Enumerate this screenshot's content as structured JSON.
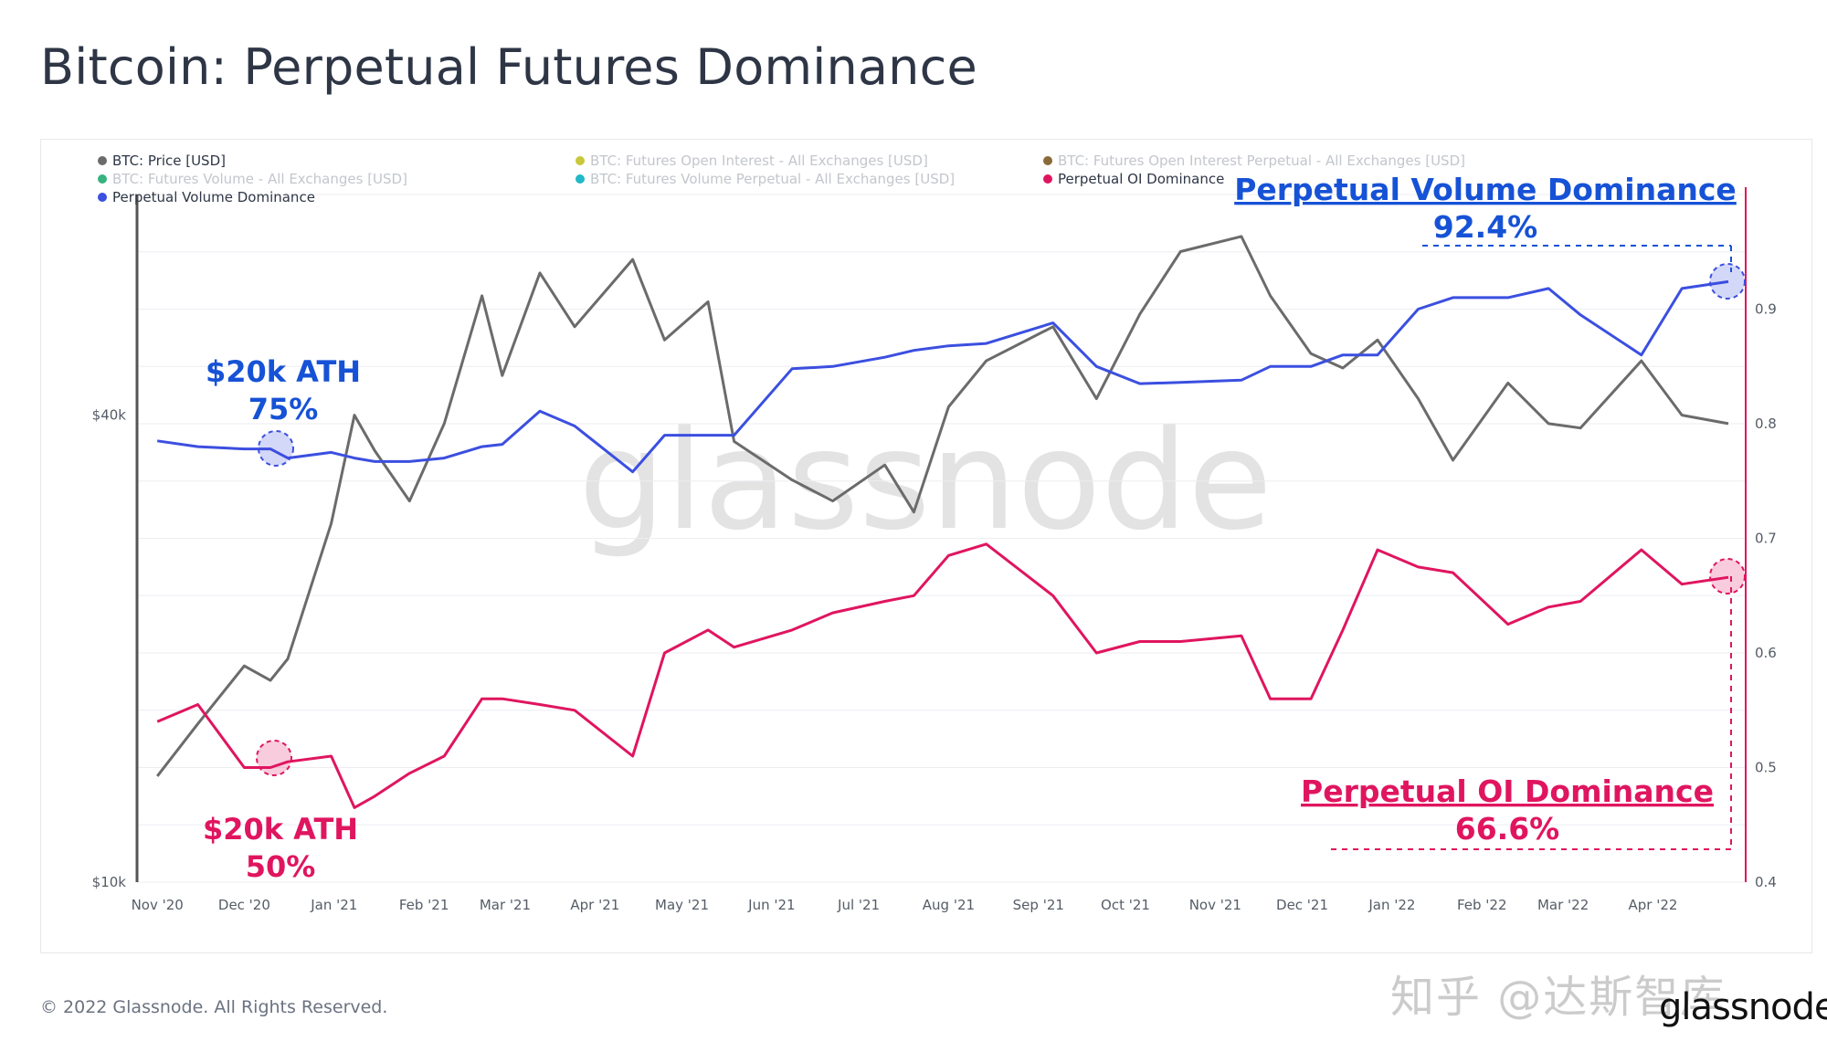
{
  "title": "Bitcoin: Perpetual Futures Dominance",
  "footer": {
    "copyright": "© 2022 Glassnode. All Rights Reserved.",
    "logo": "glassnode",
    "watermark": "知乎 @达斯智库"
  },
  "colors": {
    "price": "#6b6b6b",
    "pvd": "#3b4fe0",
    "poi": "#e0155f",
    "pvd_text": "#1652d6",
    "poi_text": "#e0155f",
    "grid": "#eceef2",
    "axis": "#555c66"
  },
  "legend": [
    {
      "label": "BTC: Price [USD]",
      "color": "#6b6b6b",
      "active": true
    },
    {
      "label": "BTC: Futures Open Interest - All Exchanges [USD]",
      "color": "#c8c83c",
      "active": false
    },
    {
      "label": "BTC: Futures Open Interest Perpetual - All Exchanges [USD]",
      "color": "#8a6a3a",
      "active": false
    },
    {
      "label": "BTC: Futures Volume - All Exchanges [USD]",
      "color": "#36b37e",
      "active": false
    },
    {
      "label": "BTC: Futures Volume Perpetual - All Exchanges [USD]",
      "color": "#22b8c8",
      "active": false
    },
    {
      "label": "Perpetual OI Dominance",
      "color": "#e0155f",
      "active": true
    },
    {
      "label": "Perpetual Volume Dominance",
      "color": "#3b4fe0",
      "active": true
    }
  ],
  "annotations": {
    "pvd_title": "Perpetual Volume Dominance",
    "pvd_value": "92.4%",
    "poi_title": "Perpetual OI Dominance",
    "poi_value": "66.6%",
    "ath_blue_line1": "$20k ATH",
    "ath_blue_line2": "75%",
    "ath_red_line1": "$20k ATH",
    "ath_red_line2": "50%"
  },
  "chart_data": {
    "type": "line",
    "title": "Bitcoin: Perpetual Futures Dominance",
    "watermark": "glassnode",
    "x_ticks": [
      "Nov '20",
      "Dec '20",
      "Jan '21",
      "Feb '21",
      "Mar '21",
      "Apr '21",
      "May '21",
      "Jun '21",
      "Jul '21",
      "Aug '21",
      "Sep '21",
      "Oct '21",
      "Nov '21",
      "Dec '21",
      "Jan '22",
      "Feb '22",
      "Mar '22",
      "Apr '22"
    ],
    "y_left": {
      "scale": "log",
      "ticks": [
        "$10k",
        "$40k"
      ],
      "tick_values": [
        10000,
        40000
      ],
      "range": [
        10000,
        77000
      ]
    },
    "y_right": {
      "ticks": [
        "0.4",
        "0.5",
        "0.6",
        "0.7",
        "0.8",
        "0.9"
      ],
      "range": [
        0.4,
        1.0
      ]
    },
    "x": [
      "2020-11-01",
      "2020-11-15",
      "2020-12-01",
      "2020-12-10",
      "2020-12-16",
      "2020-12-31",
      "2021-01-08",
      "2021-01-15",
      "2021-01-27",
      "2021-02-08",
      "2021-02-21",
      "2021-02-28",
      "2021-03-13",
      "2021-03-25",
      "2021-04-14",
      "2021-04-25",
      "2021-05-10",
      "2021-05-19",
      "2021-06-08",
      "2021-06-22",
      "2021-07-10",
      "2021-07-20",
      "2021-08-01",
      "2021-08-14",
      "2021-09-06",
      "2021-09-21",
      "2021-10-06",
      "2021-10-20",
      "2021-11-10",
      "2021-11-20",
      "2021-12-04",
      "2021-12-15",
      "2021-12-27",
      "2022-01-10",
      "2022-01-22",
      "2022-02-10",
      "2022-02-24",
      "2022-03-07",
      "2022-03-28",
      "2022-04-11",
      "2022-04-27"
    ],
    "series": [
      {
        "name": "BTC: Price [USD]",
        "axis": "left",
        "values": [
          13700,
          16000,
          19000,
          18200,
          19400,
          29000,
          40000,
          36000,
          31000,
          39000,
          57000,
          45000,
          61000,
          52000,
          63500,
          50000,
          56000,
          37000,
          33000,
          31000,
          34500,
          30000,
          41000,
          47000,
          52000,
          42000,
          54000,
          65000,
          68000,
          57000,
          48000,
          46000,
          50000,
          42000,
          35000,
          44000,
          39000,
          38500,
          47000,
          40000,
          39000
        ]
      },
      {
        "name": "Perpetual Volume Dominance",
        "axis": "right",
        "values": [
          0.785,
          0.78,
          0.778,
          0.778,
          0.77,
          0.775,
          0.77,
          0.767,
          0.767,
          0.77,
          0.78,
          0.782,
          0.811,
          0.798,
          0.758,
          0.79,
          0.79,
          0.79,
          0.848,
          0.85,
          0.858,
          0.864,
          0.868,
          0.87,
          0.888,
          0.85,
          0.835,
          0.836,
          0.838,
          0.85,
          0.85,
          0.86,
          0.86,
          0.9,
          0.91,
          0.91,
          0.918,
          0.895,
          0.86,
          0.918,
          0.924
        ]
      },
      {
        "name": "Perpetual OI Dominance",
        "axis": "right",
        "values": [
          0.54,
          0.555,
          0.5,
          0.5,
          0.505,
          0.51,
          0.465,
          0.475,
          0.495,
          0.51,
          0.56,
          0.56,
          0.555,
          0.55,
          0.51,
          0.6,
          0.62,
          0.605,
          0.62,
          0.635,
          0.645,
          0.65,
          0.685,
          0.695,
          0.65,
          0.6,
          0.61,
          0.61,
          0.615,
          0.56,
          0.56,
          0.62,
          0.69,
          0.675,
          0.67,
          0.625,
          0.64,
          0.645,
          0.69,
          0.66,
          0.666
        ]
      }
    ]
  }
}
